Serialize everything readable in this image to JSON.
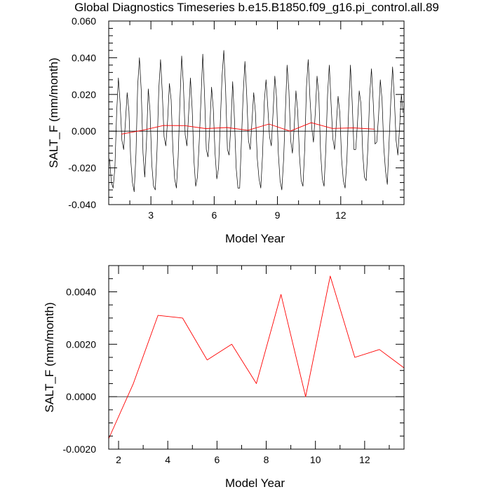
{
  "title": "Global Diagnostics Timeseries b.e15.B1850.f09_g16.pi_control.all.89",
  "colors": {
    "monthly": "#000000",
    "annual": "#ff0000",
    "axis": "#000000"
  },
  "chart_data": [
    {
      "type": "line",
      "xlabel": "Model Year",
      "ylabel": "SALT_F (mm/month)",
      "xlim": [
        1.0,
        15.0
      ],
      "ylim": [
        -0.04,
        0.06
      ],
      "x_ticks": [
        {
          "v": 3,
          "label": "3"
        },
        {
          "v": 6,
          "label": "6"
        },
        {
          "v": 9,
          "label": "9"
        },
        {
          "v": 12,
          "label": "12"
        }
      ],
      "x_minor_step": 1,
      "y_ticks": [
        {
          "v": -0.04,
          "label": "-0.040"
        },
        {
          "v": -0.02,
          "label": "-0.020"
        },
        {
          "v": 0.0,
          "label": "0.000"
        },
        {
          "v": 0.02,
          "label": "0.020"
        },
        {
          "v": 0.04,
          "label": "0.040"
        },
        {
          "v": 0.06,
          "label": "0.060"
        }
      ],
      "y_minor_step": 0.004,
      "zero_line": true,
      "series": [
        {
          "color": "monthly",
          "x": [
            1.04,
            1.125,
            1.208,
            1.292,
            1.375,
            1.458,
            1.542,
            1.625,
            1.708,
            1.792,
            1.875,
            1.958,
            2.042,
            2.125,
            2.208,
            2.292,
            2.375,
            2.458,
            2.542,
            2.625,
            2.708,
            2.792,
            2.875,
            2.958,
            3.042,
            3.125,
            3.208,
            3.292,
            3.375,
            3.458,
            3.542,
            3.625,
            3.708,
            3.792,
            3.875,
            3.958,
            4.042,
            4.125,
            4.208,
            4.292,
            4.375,
            4.458,
            4.542,
            4.625,
            4.708,
            4.792,
            4.875,
            4.958,
            5.042,
            5.125,
            5.208,
            5.292,
            5.375,
            5.458,
            5.542,
            5.625,
            5.708,
            5.792,
            5.875,
            5.958,
            6.042,
            6.125,
            6.208,
            6.292,
            6.375,
            6.458,
            6.542,
            6.625,
            6.708,
            6.792,
            6.875,
            6.958,
            7.042,
            7.125,
            7.208,
            7.292,
            7.375,
            7.458,
            7.542,
            7.625,
            7.708,
            7.792,
            7.875,
            7.958,
            8.042,
            8.125,
            8.208,
            8.292,
            8.375,
            8.458,
            8.542,
            8.625,
            8.708,
            8.792,
            8.875,
            8.958,
            9.042,
            9.125,
            9.208,
            9.292,
            9.375,
            9.458,
            9.542,
            9.625,
            9.708,
            9.792,
            9.875,
            9.958,
            10.042,
            10.125,
            10.208,
            10.292,
            10.375,
            10.458,
            10.542,
            10.625,
            10.708,
            10.792,
            10.875,
            10.958,
            11.042,
            11.125,
            11.208,
            11.292,
            11.375,
            11.458,
            11.542,
            11.625,
            11.708,
            11.792,
            11.875,
            11.958,
            12.042,
            12.125,
            12.208,
            12.292,
            12.375,
            12.458,
            12.542,
            12.625,
            12.708,
            12.792,
            12.875,
            12.958,
            13.042,
            13.125,
            13.208,
            13.292,
            13.375,
            13.458,
            13.542,
            13.625,
            13.708,
            13.792,
            13.875,
            13.958,
            14.042,
            14.125,
            14.208,
            14.292,
            14.375,
            14.458,
            14.542,
            14.625,
            14.708,
            14.792,
            14.875,
            14.958
          ],
          "y": [
            -0.015,
            -0.028,
            -0.031,
            -0.02,
            0.01,
            0.029,
            0.015,
            -0.005,
            -0.01,
            0.005,
            0.021,
            0.011,
            -0.015,
            -0.028,
            -0.033,
            -0.012,
            0.025,
            0.04,
            0.022,
            -0.012,
            -0.025,
            -0.005,
            0.023,
            0.011,
            -0.018,
            -0.03,
            -0.032,
            -0.01,
            0.023,
            0.039,
            0.021,
            -0.003,
            -0.008,
            0.006,
            0.026,
            0.017,
            -0.01,
            -0.026,
            -0.031,
            -0.014,
            0.016,
            0.041,
            0.025,
            -0.002,
            -0.008,
            0.01,
            0.029,
            0.012,
            -0.016,
            -0.03,
            -0.025,
            -0.005,
            0.018,
            0.042,
            0.02,
            -0.01,
            -0.014,
            0.002,
            0.024,
            0.012,
            -0.012,
            -0.026,
            -0.02,
            0.005,
            0.03,
            0.044,
            0.022,
            -0.01,
            -0.013,
            0.003,
            0.027,
            0.007,
            -0.02,
            -0.031,
            -0.031,
            -0.005,
            0.02,
            0.038,
            0.02,
            -0.005,
            -0.01,
            0.005,
            0.021,
            0.01,
            -0.015,
            -0.026,
            -0.031,
            -0.013,
            0.016,
            0.028,
            0.013,
            -0.003,
            -0.008,
            0.01,
            0.03,
            0.018,
            -0.012,
            -0.027,
            -0.032,
            -0.015,
            0.01,
            0.036,
            0.022,
            -0.005,
            -0.012,
            0.002,
            0.022,
            0.011,
            -0.013,
            -0.027,
            -0.03,
            -0.01,
            0.024,
            0.039,
            0.018,
            0.002,
            -0.006,
            0.01,
            0.03,
            0.02,
            -0.011,
            -0.026,
            -0.03,
            -0.01,
            0.02,
            0.036,
            0.015,
            -0.004,
            -0.01,
            0.004,
            0.019,
            0.01,
            -0.015,
            -0.027,
            -0.031,
            -0.015,
            0.012,
            0.036,
            0.016,
            -0.01,
            -0.01,
            0.004,
            0.022,
            0.015,
            -0.012,
            -0.025,
            -0.027,
            -0.008,
            0.02,
            0.034,
            0.015,
            -0.007,
            -0.006,
            0.008,
            0.028,
            0.017,
            -0.009,
            -0.022,
            -0.029,
            -0.006,
            0.017,
            0.035,
            0.018,
            -0.005,
            -0.013,
            0.002,
            0.02,
            0.01
          ]
        },
        {
          "color": "annual",
          "x": [
            1.6,
            2.6,
            3.6,
            4.6,
            5.6,
            6.6,
            7.6,
            8.6,
            9.6,
            10.6,
            11.6,
            12.6,
            13.6
          ],
          "y": [
            -0.0016,
            0.0005,
            0.0031,
            0.003,
            0.0014,
            0.002,
            0.0005,
            0.0039,
            0.0,
            0.0046,
            0.0015,
            0.0018,
            0.0011
          ]
        }
      ]
    },
    {
      "type": "line",
      "xlabel": "Model Year",
      "ylabel": "SALT_F (mm/month)",
      "xlim": [
        1.6,
        13.6
      ],
      "ylim": [
        -0.002,
        0.005
      ],
      "x_ticks": [
        {
          "v": 2,
          "label": "2"
        },
        {
          "v": 4,
          "label": "4"
        },
        {
          "v": 6,
          "label": "6"
        },
        {
          "v": 8,
          "label": "8"
        },
        {
          "v": 10,
          "label": "10"
        },
        {
          "v": 12,
          "label": "12"
        }
      ],
      "x_minor_step": 1,
      "y_ticks": [
        {
          "v": -0.002,
          "label": "-0.0020"
        },
        {
          "v": 0.0,
          "label": "0.0000"
        },
        {
          "v": 0.002,
          "label": "0.0020"
        },
        {
          "v": 0.004,
          "label": "0.0040"
        }
      ],
      "y_minor_step": 0.0005,
      "zero_line": true,
      "series": [
        {
          "color": "annual",
          "x": [
            1.6,
            2.6,
            3.6,
            4.6,
            5.6,
            6.6,
            7.6,
            8.6,
            9.6,
            10.6,
            11.6,
            12.6,
            13.6
          ],
          "y": [
            -0.0016,
            0.0005,
            0.0031,
            0.003,
            0.0014,
            0.002,
            0.0005,
            0.0039,
            0.0,
            0.0046,
            0.0015,
            0.0018,
            0.0011
          ]
        }
      ]
    }
  ]
}
